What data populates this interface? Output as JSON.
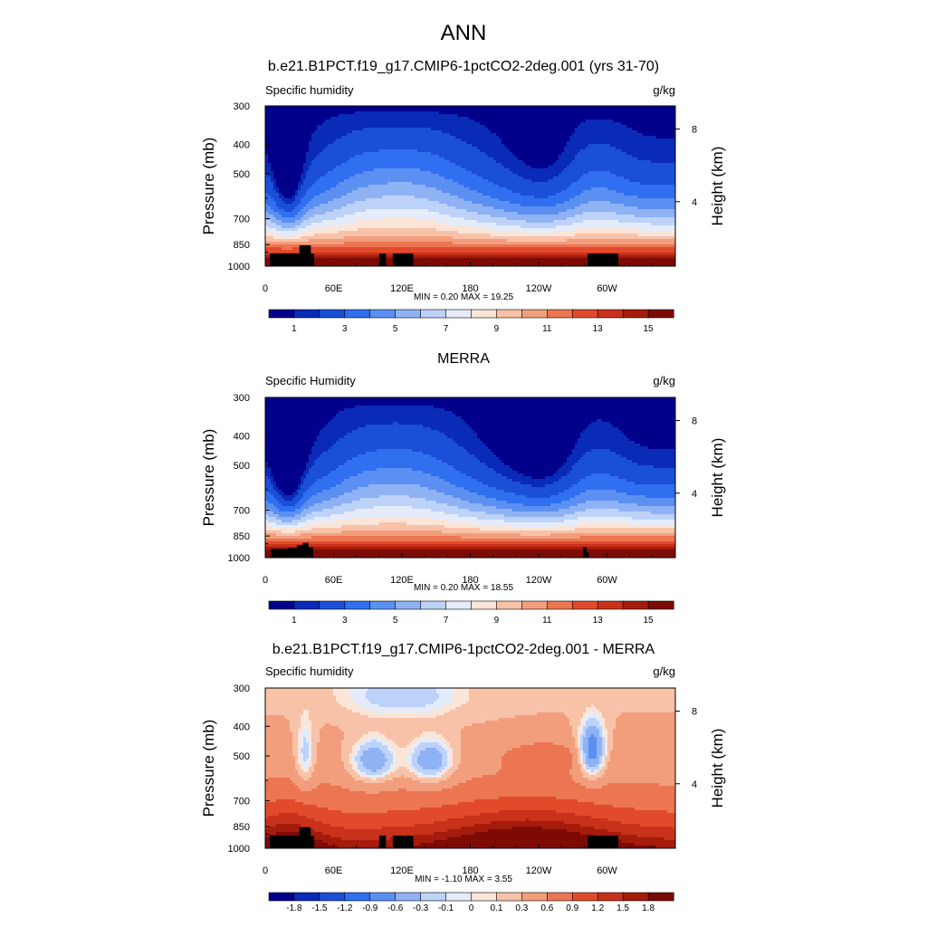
{
  "page_title": "ANN",
  "chart_data": [
    {
      "type": "heatmap",
      "title": "b.e21.B1PCT.f19_g17.CMIP6-1pctCO2-2deg.001 (yrs 31-70)",
      "left_label": "Specific humidity",
      "units": "g/kg",
      "ylabel": "Pressure (mb)",
      "right_label": "Height (km)",
      "x_ticks": [
        "0",
        "60E",
        "120E",
        "180",
        "120W",
        "60W"
      ],
      "x_tick_lons": [
        0,
        60,
        120,
        180,
        240,
        300
      ],
      "xlim": [
        0,
        360
      ],
      "y_ticks": [
        "300",
        "400",
        "500",
        "700",
        "850",
        "1000"
      ],
      "y_tick_values": [
        300,
        400,
        500,
        700,
        850,
        1000
      ],
      "ylim": [
        300,
        1000
      ],
      "height_ticks": [
        "8",
        "4"
      ],
      "height_tick_values": [
        8,
        4
      ],
      "stats": "MIN =   0.20  MAX =  19.25",
      "colorbar_labels": [
        "1",
        "3",
        "5",
        "7",
        "9",
        "11",
        "13",
        "15"
      ],
      "palette": [
        "#00008b",
        "#0a2ab8",
        "#1a4fd8",
        "#2f6ff0",
        "#5b8ff2",
        "#8fb2f5",
        "#bdd2f8",
        "#e4ecfb",
        "#fbe4d8",
        "#f8c2a8",
        "#f29e7c",
        "#ec7552",
        "#e24a2c",
        "#c8311a",
        "#a51c0c",
        "#7e0a04"
      ],
      "clim": [
        0,
        16
      ]
    },
    {
      "type": "heatmap",
      "title": "MERRA",
      "left_label": "Specific Humidity",
      "units": "g/kg",
      "ylabel": "Pressure (mb)",
      "right_label": "Height (km)",
      "x_ticks": [
        "0",
        "60E",
        "120E",
        "180",
        "120W",
        "60W"
      ],
      "x_tick_lons": [
        0,
        60,
        120,
        180,
        240,
        300
      ],
      "xlim": [
        0,
        360
      ],
      "y_ticks": [
        "300",
        "400",
        "500",
        "700",
        "850",
        "1000"
      ],
      "y_tick_values": [
        300,
        400,
        500,
        700,
        850,
        1000
      ],
      "ylim": [
        300,
        1000
      ],
      "height_ticks": [
        "8",
        "4"
      ],
      "height_tick_values": [
        8,
        4
      ],
      "stats": "MIN =   0.20  MAX =  18.55",
      "colorbar_labels": [
        "1",
        "3",
        "5",
        "7",
        "9",
        "11",
        "13",
        "15"
      ],
      "palette": [
        "#00008b",
        "#0a2ab8",
        "#1a4fd8",
        "#2f6ff0",
        "#5b8ff2",
        "#8fb2f5",
        "#bdd2f8",
        "#e4ecfb",
        "#fbe4d8",
        "#f8c2a8",
        "#f29e7c",
        "#ec7552",
        "#e24a2c",
        "#c8311a",
        "#a51c0c",
        "#7e0a04"
      ],
      "clim": [
        0,
        16
      ]
    },
    {
      "type": "heatmap",
      "title": "b.e21.B1PCT.f19_g17.CMIP6-1pctCO2-2deg.001 - MERRA",
      "left_label": "Specific humidity",
      "units": "g/kg",
      "ylabel": "Pressure (mb)",
      "right_label": "Height (km)",
      "x_ticks": [
        "0",
        "60E",
        "120E",
        "180",
        "120W",
        "60W"
      ],
      "x_tick_lons": [
        0,
        60,
        120,
        180,
        240,
        300
      ],
      "xlim": [
        0,
        360
      ],
      "y_ticks": [
        "300",
        "400",
        "500",
        "700",
        "850",
        "1000"
      ],
      "y_tick_values": [
        300,
        400,
        500,
        700,
        850,
        1000
      ],
      "ylim": [
        300,
        1000
      ],
      "height_ticks": [
        "8",
        "4"
      ],
      "height_tick_values": [
        8,
        4
      ],
      "stats": "MIN =  -1.10  MAX =   3.55",
      "colorbar_labels": [
        "-1.8",
        "-1.5",
        "-1.2",
        "-0.9",
        "-0.6",
        "-0.3",
        "-0.1",
        "0",
        "0.1",
        "0.3",
        "0.6",
        "0.9",
        "1.2",
        "1.5",
        "1.8"
      ],
      "palette": [
        "#00008b",
        "#0a2ab8",
        "#1a4fd8",
        "#2f6ff0",
        "#5b8ff2",
        "#8fb2f5",
        "#bdd2f8",
        "#e4ecfb",
        "#fbe4d8",
        "#f8c2a8",
        "#f29e7c",
        "#ec7552",
        "#e24a2c",
        "#c8311a",
        "#a51c0c",
        "#7e0a04"
      ],
      "clim": [
        -2.1,
        2.1
      ]
    }
  ]
}
